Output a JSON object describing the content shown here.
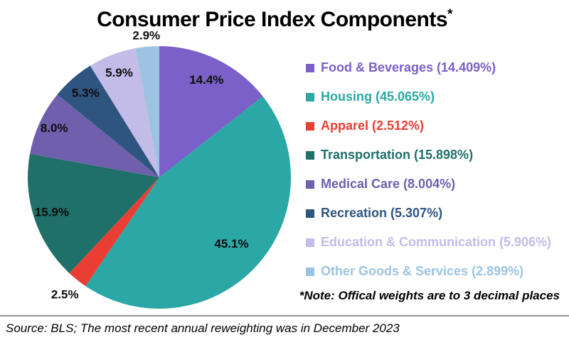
{
  "title": {
    "text": "Consumer Price Index Components",
    "superscript": "*"
  },
  "note": "*Note: Offical weights are to 3 decimal places",
  "source": "Source: BLS; The most recent annual reweighting was in December 2023",
  "chart_data": {
    "type": "pie",
    "title": "Consumer Price Index Components*",
    "start_angle_deg": 0,
    "direction": "clockwise",
    "legend_position": "right",
    "slices": [
      {
        "label": "Food & Beverages",
        "weight": 14.409,
        "display": "14.4%",
        "legend_label": "Food & Beverages (14.409%)",
        "color": "#7A60C8",
        "label_outside": false,
        "label_r": 0.82
      },
      {
        "label": "Housing",
        "weight": 45.065,
        "display": "45.1%",
        "legend_label": "Housing (45.065%)",
        "color": "#2BA7A6",
        "label_outside": false,
        "label_r": 0.75
      },
      {
        "label": "Apparel",
        "weight": 2.512,
        "display": "2.5%",
        "legend_label": "Apparel (2.512%)",
        "color": "#EA3E34",
        "label_outside": true,
        "label_r": 1.15
      },
      {
        "label": "Transportation",
        "weight": 15.898,
        "display": "15.9%",
        "legend_label": "Transportation (15.898%)",
        "color": "#20706A",
        "label_outside": false,
        "label_r": 0.86
      },
      {
        "label": "Medical Care",
        "weight": 8.004,
        "display": "8.0%",
        "legend_label": "Medical Care (8.004%)",
        "color": "#6F5FAD",
        "label_outside": false,
        "label_r": 0.88
      },
      {
        "label": "Recreation",
        "weight": 5.307,
        "display": "5.3%",
        "legend_label": "Recreation (5.307%)",
        "color": "#2E5480",
        "label_outside": false,
        "label_r": 0.85
      },
      {
        "label": "Education & Communication",
        "weight": 5.906,
        "display": "5.9%",
        "legend_label": "Education & Communication (5.906%)",
        "color": "#C3BBE8",
        "label_outside": false,
        "label_r": 0.85
      },
      {
        "label": "Other Goods & Services",
        "weight": 2.899,
        "display": "2.9%",
        "legend_label": "Other Goods & Services (2.899%)",
        "color": "#9DC3E2",
        "label_outside": true,
        "label_r": 1.08
      }
    ]
  }
}
